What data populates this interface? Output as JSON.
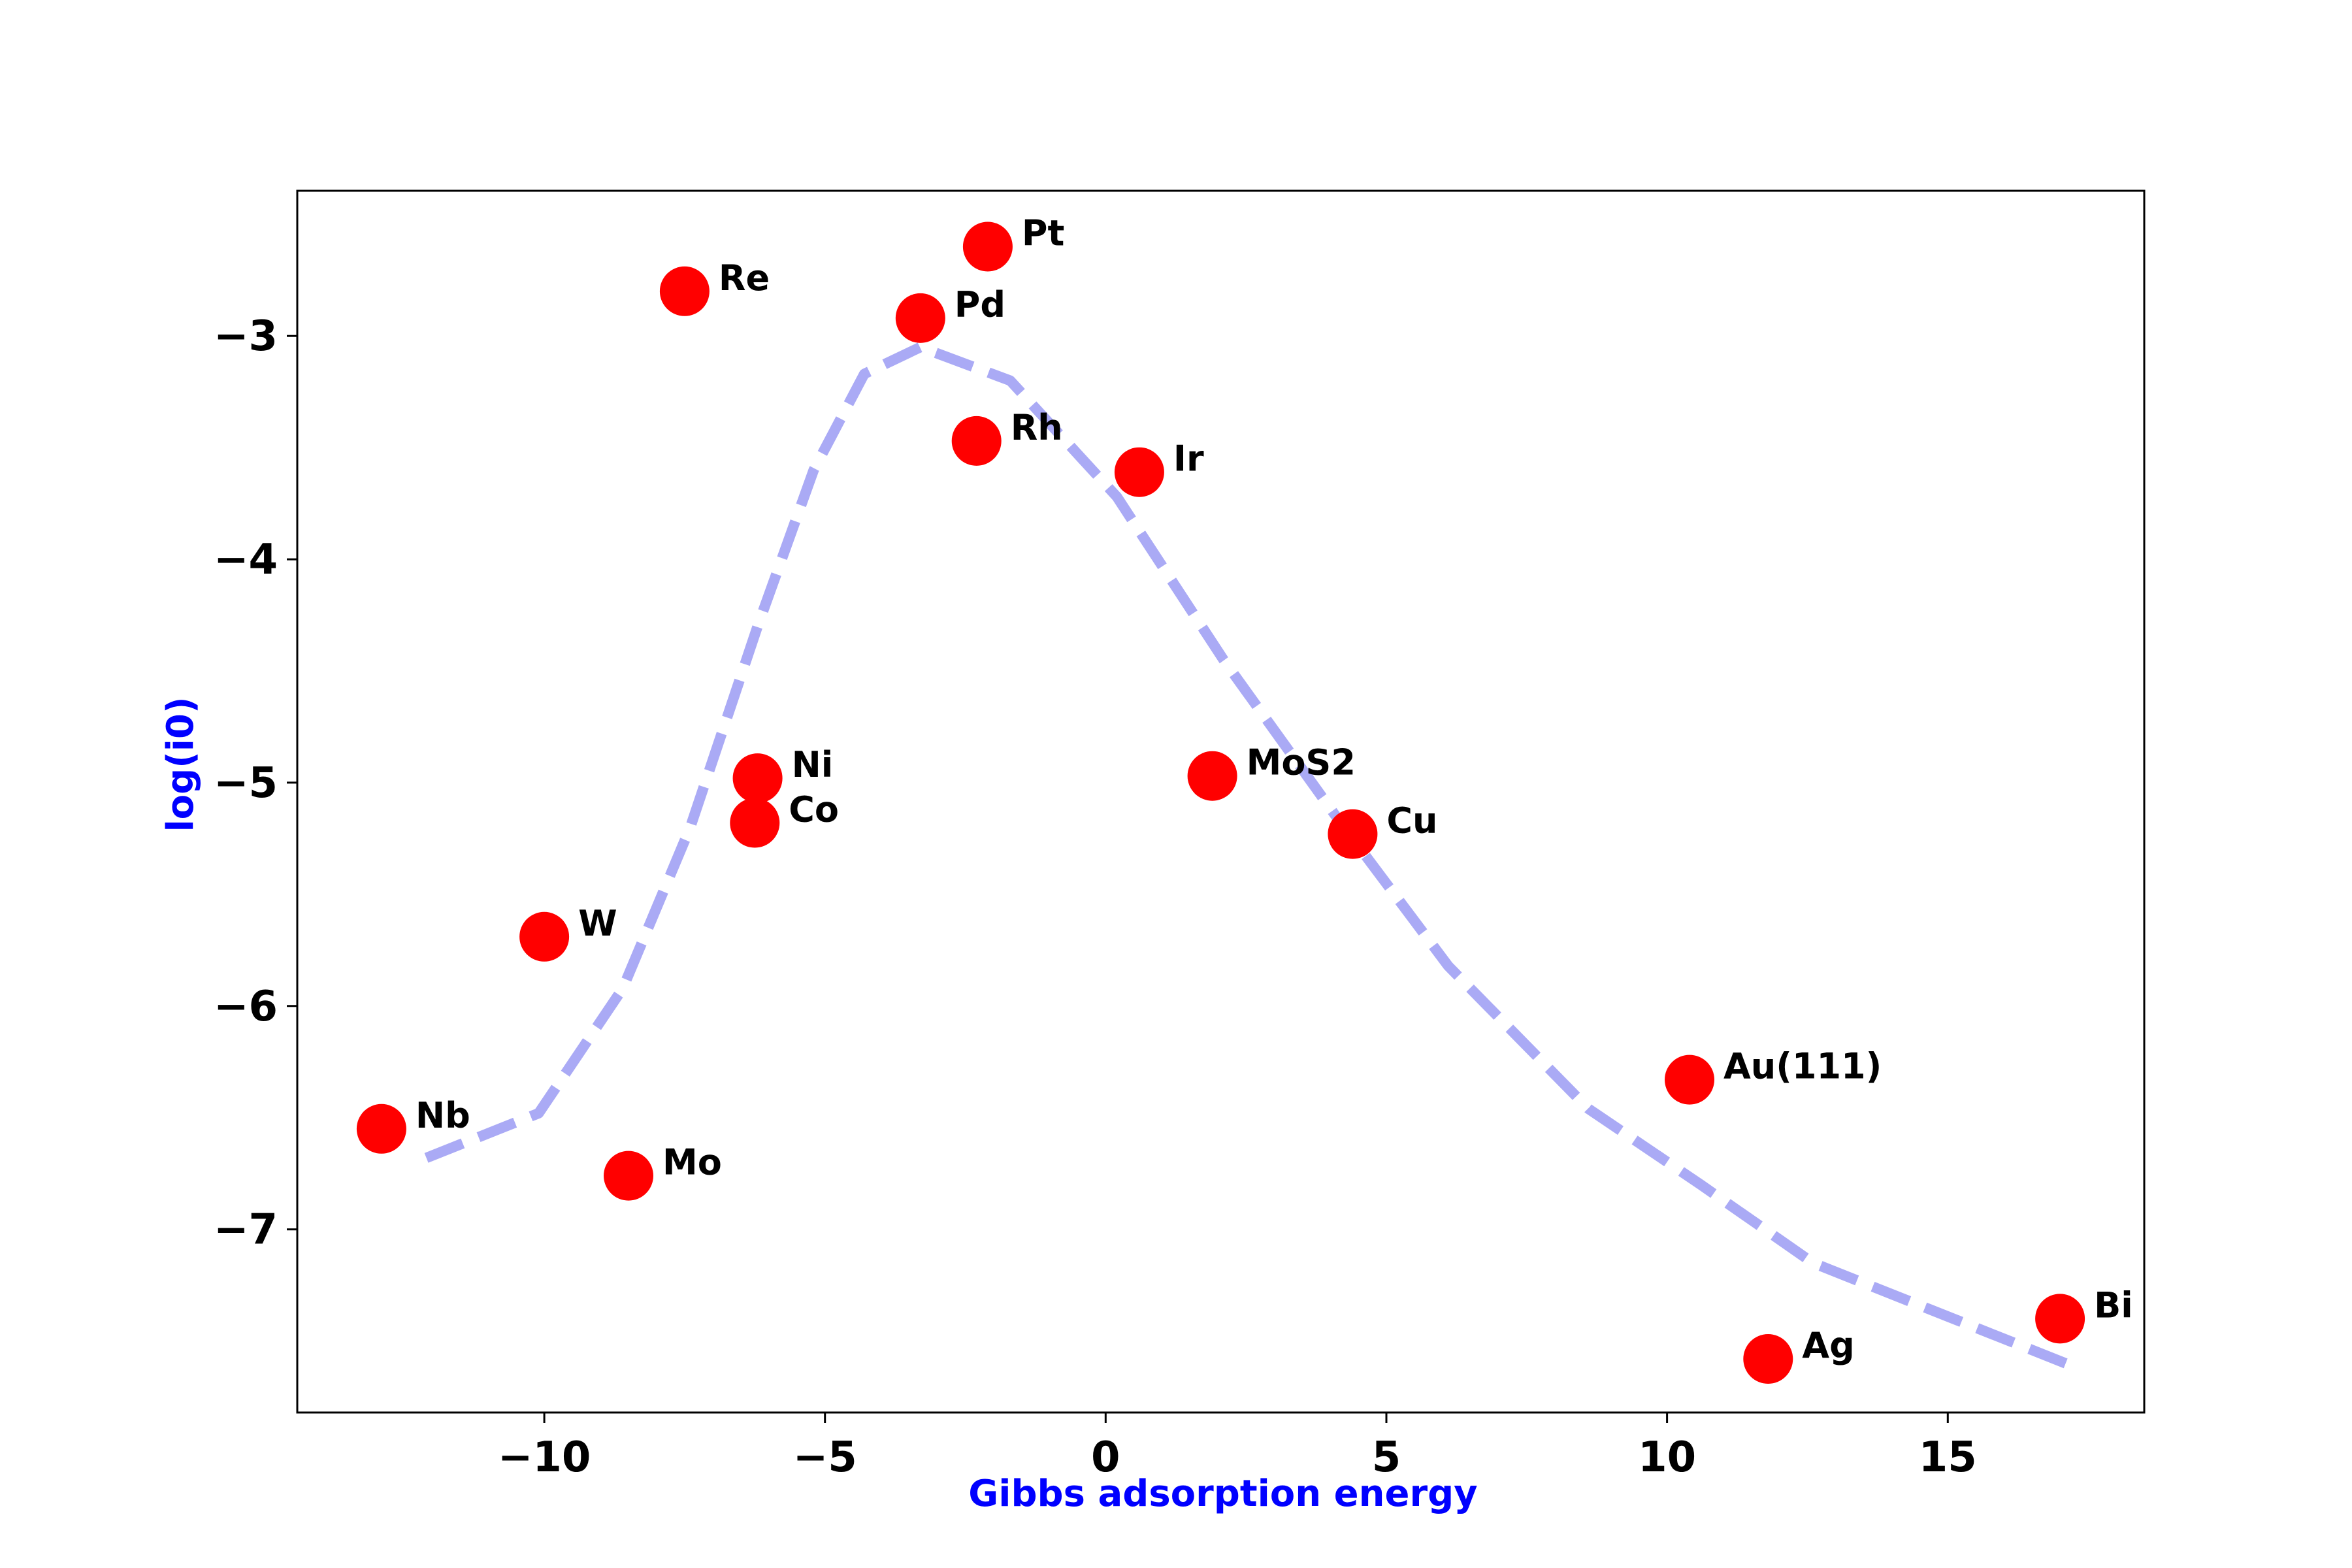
{
  "chart_data": {
    "type": "scatter",
    "title": "",
    "xlabel": "Gibbs adsorption energy",
    "ylabel": "log(i0)",
    "xlim": [
      -14.4,
      18.5
    ],
    "ylim": [
      -7.82,
      -2.35
    ],
    "xticks": [
      -10,
      -5,
      0,
      5,
      10,
      15
    ],
    "xtick_labels": [
      "−10",
      "−5",
      "0",
      "5",
      "10",
      "15"
    ],
    "yticks": [
      -3,
      -4,
      -5,
      -6,
      -7
    ],
    "ytick_labels": [
      "−3",
      "−4",
      "−5",
      "−6",
      "−7"
    ],
    "grid": false,
    "point_color": "#ff0000",
    "curve_color": "#aaaaf5",
    "points": [
      {
        "label": "Pt",
        "x": -2.1,
        "y": -2.6
      },
      {
        "label": "Re",
        "x": -7.5,
        "y": -2.8
      },
      {
        "label": "Pd",
        "x": -3.3,
        "y": -2.92
      },
      {
        "label": "Rh",
        "x": -2.3,
        "y": -3.47
      },
      {
        "label": "Ir",
        "x": 0.6,
        "y": -3.61
      },
      {
        "label": "Ni",
        "x": -6.2,
        "y": -4.98
      },
      {
        "label": "Co",
        "x": -6.25,
        "y": -5.18
      },
      {
        "label": "MoS2",
        "x": 1.9,
        "y": -4.97
      },
      {
        "label": "Cu",
        "x": 4.4,
        "y": -5.23
      },
      {
        "label": "W",
        "x": -10.0,
        "y": -5.69
      },
      {
        "label": "Nb",
        "x": -12.9,
        "y": -6.55
      },
      {
        "label": "Mo",
        "x": -8.5,
        "y": -6.76
      },
      {
        "label": "Au(111)",
        "x": 10.4,
        "y": -6.33
      },
      {
        "label": "Ag",
        "x": 11.8,
        "y": -7.58
      },
      {
        "label": "Bi",
        "x": 17.0,
        "y": -7.4
      }
    ],
    "curve": {
      "style": "dashed",
      "x": [
        -12.1,
        -10.1,
        -8.6,
        -7.4,
        -6.2,
        -5.2,
        -4.3,
        -3.3,
        -1.7,
        0.2,
        2.1,
        4.1,
        6.1,
        8.6,
        10.6,
        12.6,
        15.1,
        17.1
      ],
      "y": [
        -6.68,
        -6.48,
        -5.92,
        -5.2,
        -4.3,
        -3.6,
        -3.17,
        -3.05,
        -3.2,
        -3.72,
        -4.45,
        -5.15,
        -5.82,
        -6.46,
        -6.8,
        -7.15,
        -7.4,
        -7.6
      ]
    }
  }
}
